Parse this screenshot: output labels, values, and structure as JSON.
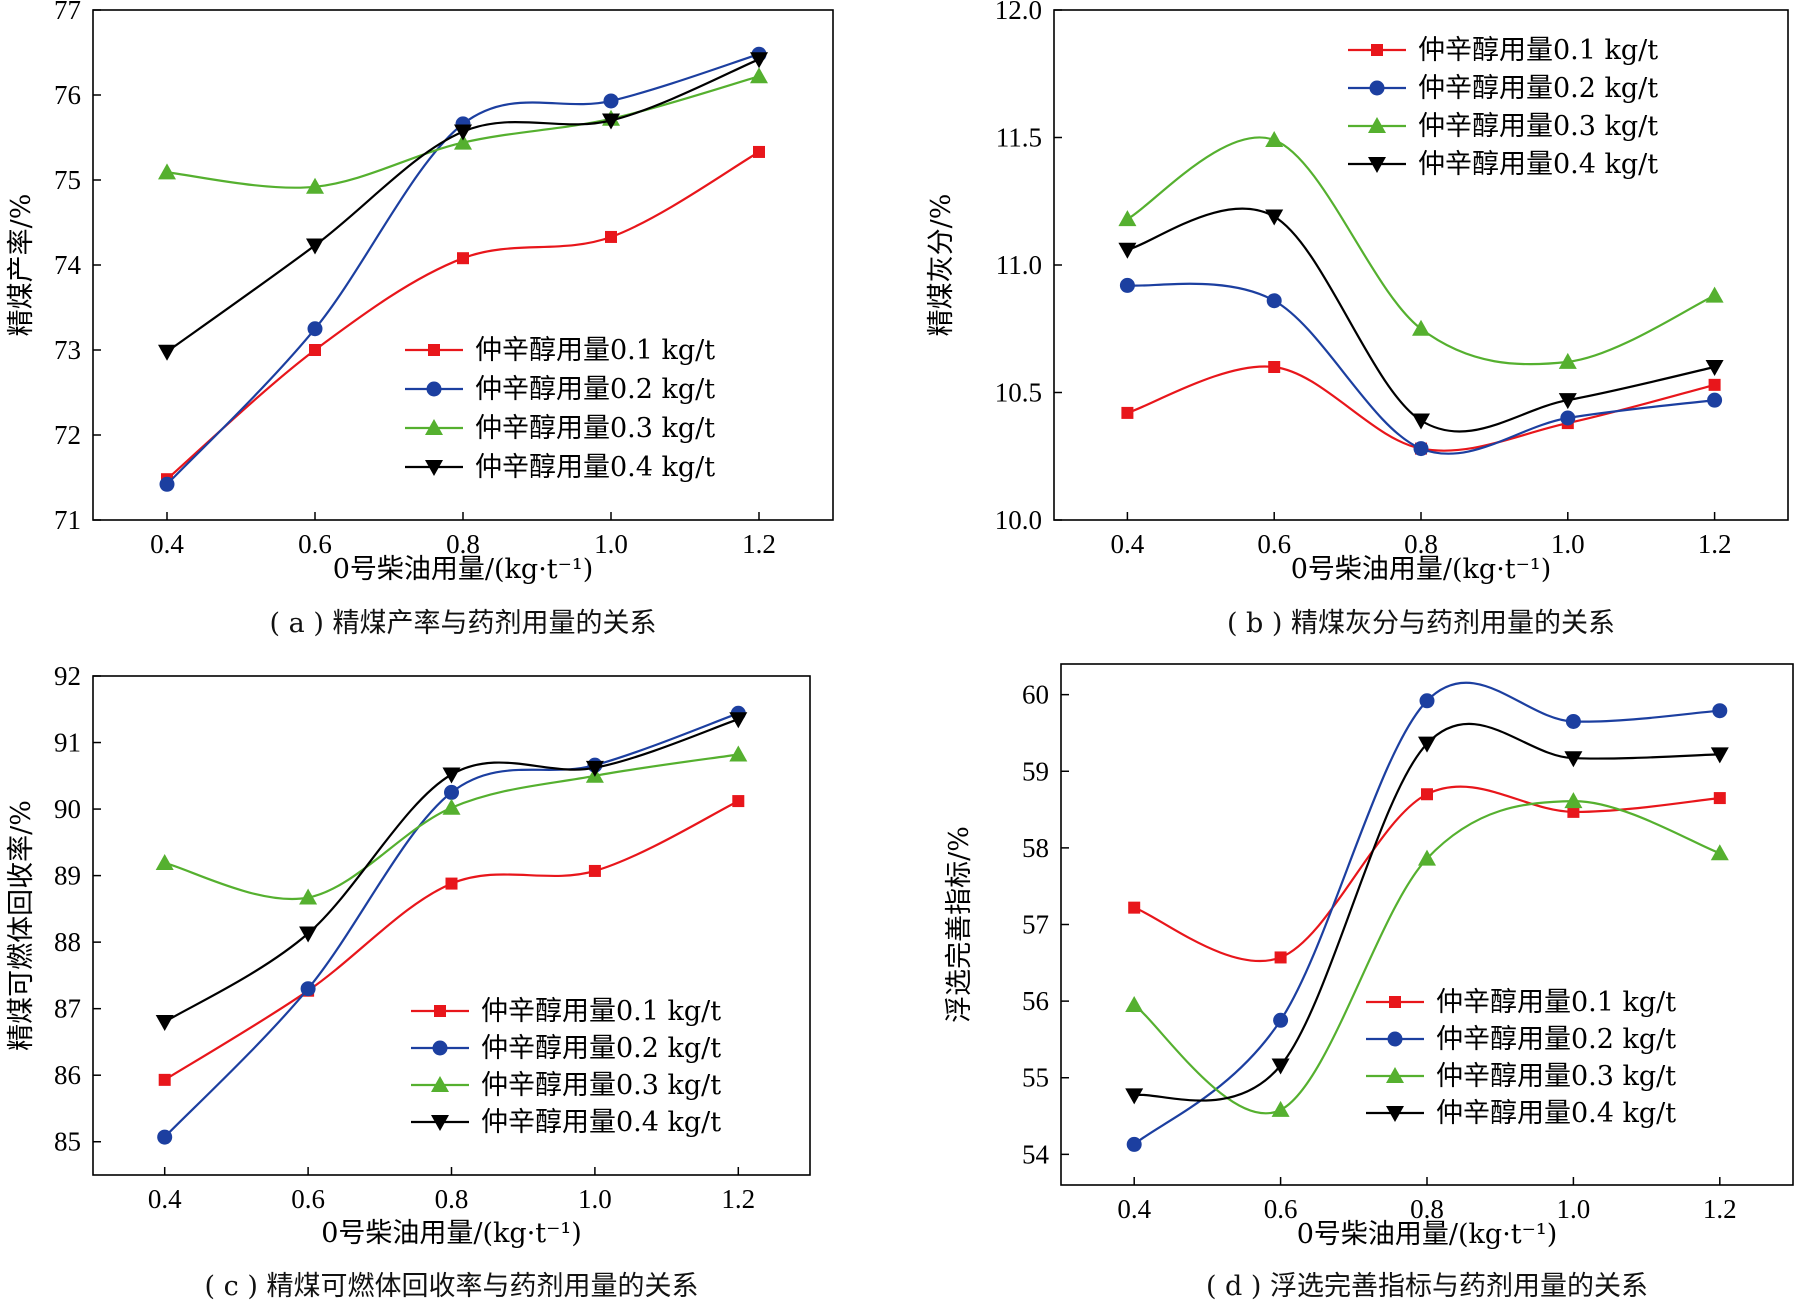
{
  "colors": {
    "series": [
      "#e8161b",
      "#1c3fa0",
      "#55b02f",
      "#000000"
    ],
    "axes": "#000000"
  },
  "chart_data": [
    {
      "type": "line",
      "caption": "( a ) 精煤产率与药剂用量的关系",
      "xlabel": "0号柴油用量/(kg·t⁻¹)",
      "ylabel": "精煤产率/%",
      "x": [
        0.4,
        0.6,
        0.8,
        1.0,
        1.2
      ],
      "xticks": [
        "0.4",
        "0.6",
        "0.8",
        "1.0",
        "1.2"
      ],
      "xlim": [
        0.3,
        1.3
      ],
      "ylim": [
        71,
        77
      ],
      "yticks": [
        "71",
        "72",
        "73",
        "74",
        "75",
        "76",
        "77"
      ],
      "legend_position": "lower-right",
      "series": [
        {
          "name": "仲辛醇用量0.1 kg/t",
          "marker": "square",
          "values": [
            71.48,
            73.0,
            74.08,
            74.33,
            75.33
          ]
        },
        {
          "name": "仲辛醇用量0.2 kg/t",
          "marker": "circle",
          "values": [
            71.42,
            73.25,
            75.66,
            75.93,
            76.48
          ]
        },
        {
          "name": "仲辛醇用量0.3 kg/t",
          "marker": "triangle-up",
          "values": [
            75.09,
            74.92,
            75.44,
            75.72,
            76.22
          ]
        },
        {
          "name": "仲辛醇用量0.4 kg/t",
          "marker": "triangle-down",
          "values": [
            72.98,
            74.23,
            75.57,
            75.7,
            76.42
          ]
        }
      ]
    },
    {
      "type": "line",
      "caption": "( b ) 精煤灰分与药剂用量的关系",
      "xlabel": "0号柴油用量/(kg·t⁻¹)",
      "ylabel": "精煤灰分/%",
      "x": [
        0.4,
        0.6,
        0.8,
        1.0,
        1.2
      ],
      "xticks": [
        "0.4",
        "0.6",
        "0.8",
        "1.0",
        "1.2"
      ],
      "xlim": [
        0.3,
        1.3
      ],
      "ylim": [
        10.0,
        12.0
      ],
      "yticks": [
        "10.0",
        "10.5",
        "11.0",
        "11.5",
        "12.0"
      ],
      "legend_position": "top-right",
      "series": [
        {
          "name": "仲辛醇用量0.1 kg/t",
          "marker": "square",
          "values": [
            10.42,
            10.6,
            10.28,
            10.38,
            10.53
          ]
        },
        {
          "name": "仲辛醇用量0.2 kg/t",
          "marker": "circle",
          "values": [
            10.92,
            10.86,
            10.28,
            10.4,
            10.47
          ]
        },
        {
          "name": "仲辛醇用量0.3 kg/t",
          "marker": "triangle-up",
          "values": [
            11.18,
            11.49,
            10.75,
            10.62,
            10.88
          ]
        },
        {
          "name": "仲辛醇用量0.4 kg/t",
          "marker": "triangle-down",
          "values": [
            11.06,
            11.19,
            10.39,
            10.47,
            10.6
          ]
        }
      ]
    },
    {
      "type": "line",
      "caption": "( c ) 精煤可燃体回收率与药剂用量的关系",
      "xlabel": "0号柴油用量/(kg·t⁻¹)",
      "ylabel": "精煤可燃体回收率/%",
      "x": [
        0.4,
        0.6,
        0.8,
        1.0,
        1.2
      ],
      "xticks": [
        "0.4",
        "0.6",
        "0.8",
        "1.0",
        "1.2"
      ],
      "xlim": [
        0.3,
        1.3
      ],
      "ylim": [
        84.5,
        92
      ],
      "yticks": [
        "85",
        "86",
        "87",
        "88",
        "89",
        "90",
        "91",
        "92"
      ],
      "legend_position": "lower-right",
      "series": [
        {
          "name": "仲辛醇用量0.1 kg/t",
          "marker": "square",
          "values": [
            85.93,
            87.27,
            88.88,
            89.07,
            90.12
          ]
        },
        {
          "name": "仲辛醇用量0.2 kg/t",
          "marker": "circle",
          "values": [
            85.07,
            87.3,
            90.25,
            90.66,
            91.44
          ]
        },
        {
          "name": "仲辛醇用量0.3 kg/t",
          "marker": "triangle-up",
          "values": [
            89.19,
            88.67,
            90.02,
            90.5,
            90.82
          ]
        },
        {
          "name": "仲辛醇用量0.4 kg/t",
          "marker": "triangle-down",
          "values": [
            86.8,
            88.13,
            90.52,
            90.62,
            91.35
          ]
        }
      ]
    },
    {
      "type": "line",
      "caption": "( d ) 浮选完善指标与药剂用量的关系",
      "xlabel": "0号柴油用量/(kg·t⁻¹)",
      "ylabel": "浮选完善指标/%",
      "x": [
        0.4,
        0.6,
        0.8,
        1.0,
        1.2
      ],
      "xticks": [
        "0.4",
        "0.6",
        "0.8",
        "1.0",
        "1.2"
      ],
      "xlim": [
        0.3,
        1.3
      ],
      "ylim": [
        53.6,
        60.4
      ],
      "yticks": [
        "54",
        "55",
        "56",
        "57",
        "58",
        "59",
        "60"
      ],
      "legend_position": "lower-right",
      "series": [
        {
          "name": "仲辛醇用量0.1 kg/t",
          "marker": "square",
          "values": [
            57.22,
            56.57,
            58.7,
            58.47,
            58.65
          ]
        },
        {
          "name": "仲辛醇用量0.2 kg/t",
          "marker": "circle",
          "values": [
            54.13,
            55.75,
            59.92,
            59.65,
            59.79
          ]
        },
        {
          "name": "仲辛醇用量0.3 kg/t",
          "marker": "triangle-up",
          "values": [
            55.95,
            54.58,
            57.86,
            58.61,
            57.93
          ]
        },
        {
          "name": "仲辛醇用量0.4 kg/t",
          "marker": "triangle-down",
          "values": [
            54.77,
            55.16,
            59.36,
            59.17,
            59.22
          ]
        }
      ]
    }
  ]
}
